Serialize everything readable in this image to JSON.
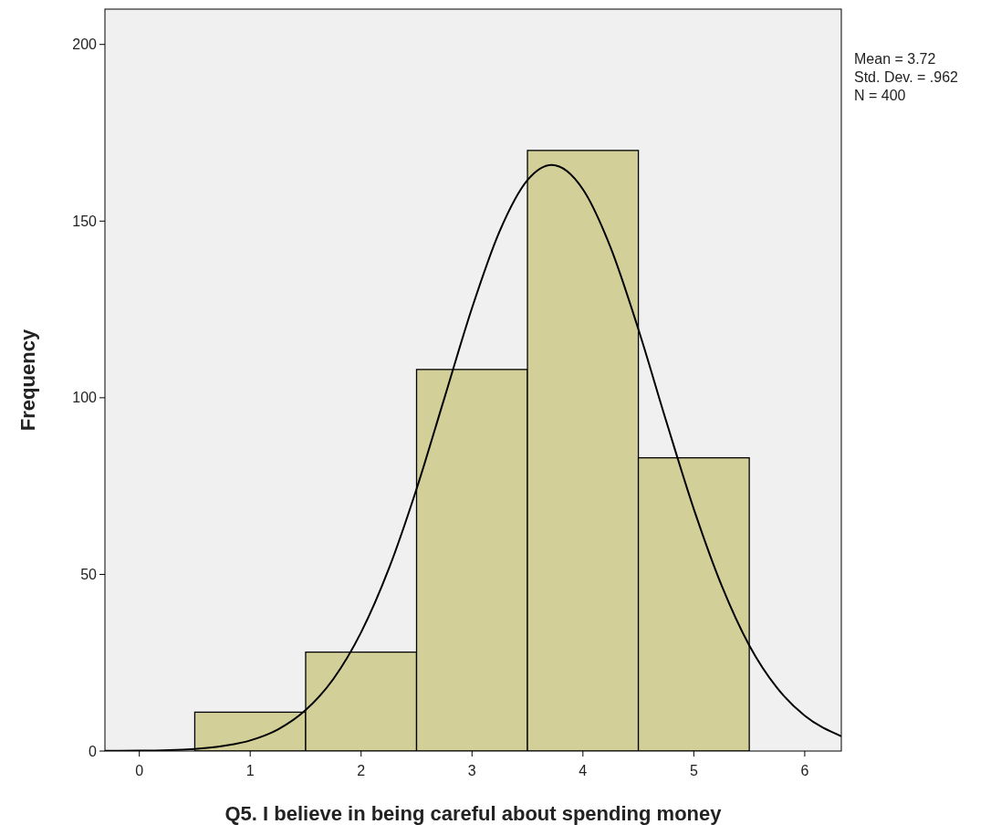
{
  "chart_data": {
    "type": "histogram",
    "xlabel": "Q5. I believe in being careful about spending money",
    "ylabel": "Frequency",
    "bins": [
      0.5,
      1.5,
      2.5,
      3.5,
      4.5,
      5.5
    ],
    "values": [
      11,
      28,
      108,
      170,
      83
    ],
    "color": "#d3cf99",
    "series": [
      {
        "type": "line",
        "color": "#000000",
        "x": [
          -0.31,
          0,
          0.5,
          0.75,
          1,
          1.25,
          1.5,
          1.75,
          2,
          2.25,
          2.5,
          2.75,
          3,
          3.25,
          3.5,
          3.72,
          4,
          4.25,
          4.5,
          4.75,
          5,
          5.25,
          5.5,
          5.75,
          6,
          6.33
        ],
        "values": [
          0.05,
          0.1,
          0.6,
          1.4,
          3,
          6.1,
          11.6,
          20.4,
          33.6,
          51.6,
          74.2,
          99.8,
          125.4,
          147.2,
          161.6,
          165.9,
          159,
          142.5,
          119.4,
          93.5,
          68.5,
          46.9,
          29.9,
          17.9,
          10,
          4.2
        ]
      }
    ],
    "xlim": [
      -0.31,
      6.33
    ],
    "ylim": [
      0,
      210
    ],
    "xticks": [
      0,
      1,
      2,
      3,
      4,
      5,
      6
    ],
    "yticks": [
      0,
      50,
      100,
      150,
      200
    ],
    "grid": false,
    "annotations": [
      "Mean = 3.72",
      "Std. Dev. = .962",
      "N = 400"
    ]
  }
}
